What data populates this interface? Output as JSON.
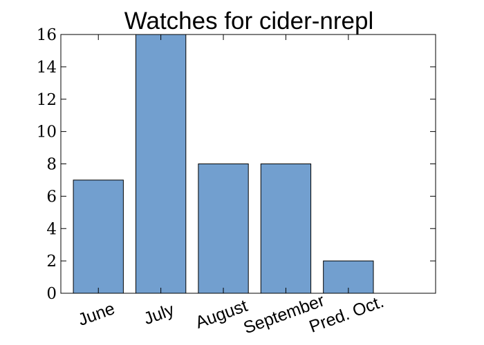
{
  "chart_data": {
    "type": "bar",
    "title": "Watches for cider-nrepl",
    "xlabel": "",
    "ylabel": "",
    "categories": [
      "June",
      "July",
      "August",
      "September",
      "Pred. Oct."
    ],
    "values": [
      7,
      16,
      8,
      8,
      2
    ],
    "ylim": [
      0,
      16
    ],
    "yticks": [
      0,
      2,
      4,
      6,
      8,
      10,
      12,
      14,
      16
    ],
    "grid": false,
    "legend": "none",
    "bar_color": "#729fcf",
    "edge_color": "#000000"
  }
}
